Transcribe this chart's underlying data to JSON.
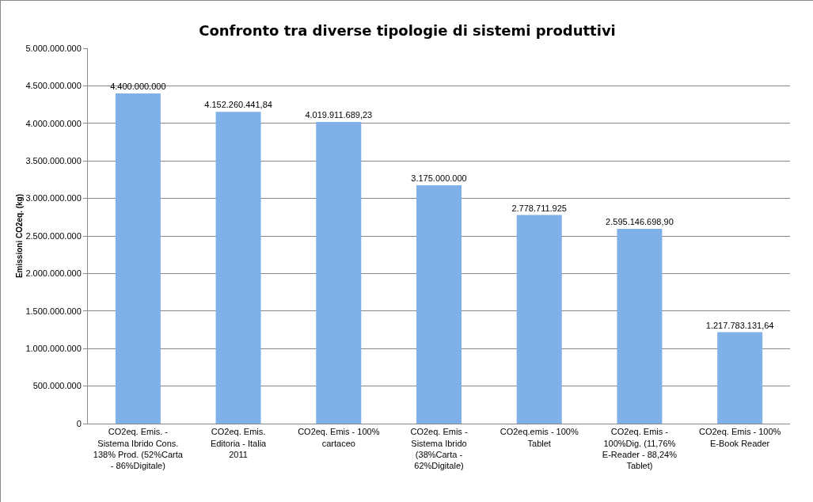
{
  "chart_data": {
    "type": "bar",
    "title": "Confronto tra diverse tipologie di sistemi produttivi",
    "ylabel": "Emissioni CO2eq. (kg)",
    "categories": [
      "CO2eq. Emis. - Sistema Ibrido Cons. 138% Prod. (52%Carta - 86%Digitale)",
      "CO2eq. Emis. Editoria - Italia 2011",
      "CO2eq. Emis - 100% cartaceo",
      "CO2eq. Emis - Sistema Ibrido (38%Carta - 62%Digitale)",
      "CO2eq.emis - 100% Tablet",
      "CO2eq. Emis - 100%Dig. (11,76% E-Reader - 88,24% Tablet)",
      "CO2eq. Emis - 100% E-Book Reader"
    ],
    "values": [
      4400000000,
      4152260441.84,
      4019911689.23,
      3175000000,
      2778711925,
      2595146698.9,
      1217783131.64
    ],
    "value_labels": [
      "4.400.000.000",
      "4.152.260.441,84",
      "4.019.911.689,23",
      "3.175.000.000",
      "2.778.711.925",
      "2.595.146.698,90",
      "1.217.783.131,64"
    ],
    "color": "#7fb0e8",
    "ylim": [
      0,
      5000000000
    ],
    "yticks": [
      0,
      {
        "value": 500000000,
        "label": "500.000.000"
      },
      {
        "value": 1000000000,
        "label": "1.000.000.000"
      },
      {
        "value": 1500000000,
        "label": "1.500.000.000"
      },
      {
        "value": 2000000000,
        "label": "2.000.000.000"
      },
      {
        "value": 2500000000,
        "label": "2.500.000.000"
      },
      {
        "value": 3000000000,
        "label": "3.000.000.000"
      },
      {
        "value": 3500000000,
        "label": "3.500.000.000"
      },
      {
        "value": 4000000000,
        "label": "4.000.000.000"
      },
      {
        "value": 4500000000,
        "label": "4.500.000.000"
      },
      {
        "value": 5000000000,
        "label": "5.000.000.000"
      }
    ],
    "grid": "y"
  }
}
